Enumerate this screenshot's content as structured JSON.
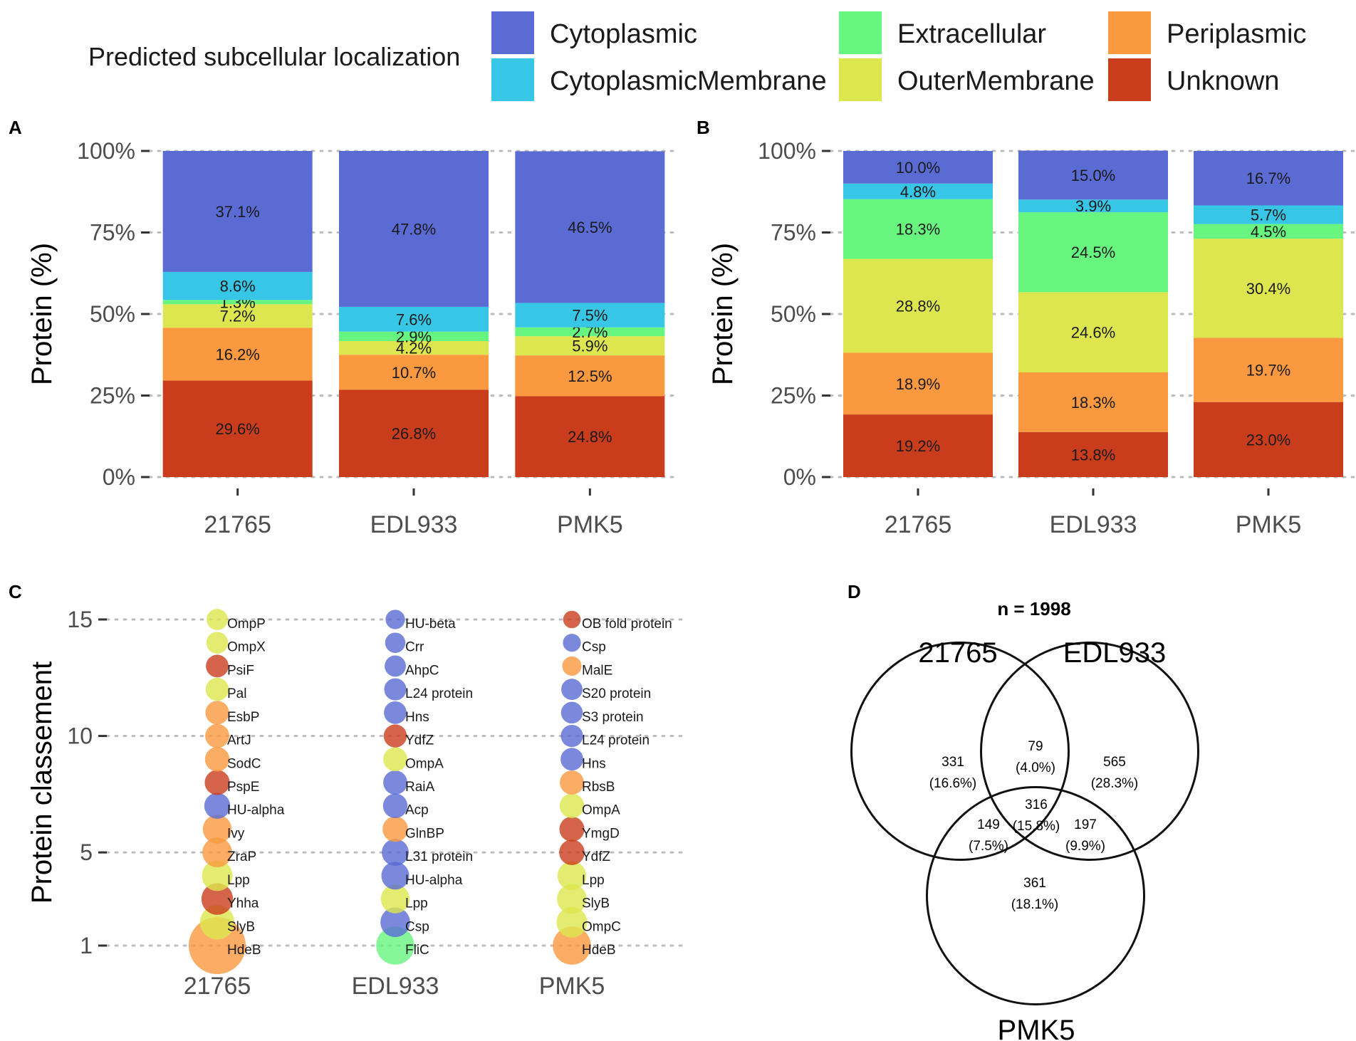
{
  "legend": {
    "title": "Predicted subcellular localization",
    "entries": [
      {
        "label": "Cytoplasmic",
        "color": "#5A6BD4"
      },
      {
        "label": "CytoplasmicMembrane",
        "color": "#38C6E6"
      },
      {
        "label": "Extracellular",
        "color": "#68F57F"
      },
      {
        "label": "OuterMembrane",
        "color": "#DDE64E"
      },
      {
        "label": "Periplasmic",
        "color": "#FA9940"
      },
      {
        "label": "Unknown",
        "color": "#C93D1D"
      }
    ]
  },
  "chart_data": [
    {
      "panel": "A",
      "type": "bar",
      "stacked": true,
      "ylabel": "Protein (%)",
      "ylim": [
        0,
        100
      ],
      "yticks": [
        "0%",
        "25%",
        "50%",
        "75%",
        "100%"
      ],
      "categories": [
        "21765",
        "EDL933",
        "PMK5"
      ],
      "series": [
        {
          "name": "Unknown",
          "values": [
            29.6,
            26.8,
            24.8
          ],
          "labels": [
            "29.6%",
            "26.8%",
            "24.8%"
          ]
        },
        {
          "name": "Periplasmic",
          "values": [
            16.2,
            10.7,
            12.5
          ],
          "labels": [
            "16.2%",
            "10.7%",
            "12.5%"
          ]
        },
        {
          "name": "OuterMembrane",
          "values": [
            7.2,
            4.2,
            5.9
          ],
          "labels": [
            "7.2%",
            "4.2%",
            "5.9%"
          ]
        },
        {
          "name": "Extracellular",
          "values": [
            1.3,
            2.9,
            2.7
          ],
          "labels": [
            "1.3%",
            "2.9%",
            "2.7%"
          ]
        },
        {
          "name": "CytoplasmicMembrane",
          "values": [
            8.6,
            7.6,
            7.5
          ],
          "labels": [
            "8.6%",
            "7.6%",
            "7.5%"
          ]
        },
        {
          "name": "Cytoplasmic",
          "values": [
            37.1,
            47.8,
            46.5
          ],
          "labels": [
            "37.1%",
            "47.8%",
            "46.5%"
          ]
        }
      ]
    },
    {
      "panel": "B",
      "type": "bar",
      "stacked": true,
      "ylabel": "Protein (%)",
      "ylim": [
        0,
        100
      ],
      "yticks": [
        "0%",
        "25%",
        "50%",
        "75%",
        "100%"
      ],
      "categories": [
        "21765",
        "EDL933",
        "PMK5"
      ],
      "series": [
        {
          "name": "Unknown",
          "values": [
            19.2,
            13.8,
            23.0
          ],
          "labels": [
            "19.2%",
            "13.8%",
            "23.0%"
          ]
        },
        {
          "name": "Periplasmic",
          "values": [
            18.9,
            18.3,
            19.7
          ],
          "labels": [
            "18.9%",
            "18.3%",
            "19.7%"
          ]
        },
        {
          "name": "OuterMembrane",
          "values": [
            28.8,
            24.6,
            30.4
          ],
          "labels": [
            "28.8%",
            "24.6%",
            "30.4%"
          ]
        },
        {
          "name": "Extracellular",
          "values": [
            18.3,
            24.5,
            4.5
          ],
          "labels": [
            "18.3%",
            "24.5%",
            "4.5%"
          ]
        },
        {
          "name": "CytoplasmicMembrane",
          "values": [
            4.8,
            3.9,
            5.7
          ],
          "labels": [
            "4.8%",
            "3.9%",
            "5.7%"
          ]
        },
        {
          "name": "Cytoplasmic",
          "values": [
            10.0,
            15.0,
            16.7
          ],
          "labels": [
            "10.0%",
            "15.0%",
            "16.7%"
          ]
        }
      ]
    },
    {
      "panel": "C",
      "type": "scatter",
      "ylabel": "Protein classement",
      "yticks": [
        1,
        5,
        10,
        15
      ],
      "ylim": [
        1,
        15
      ],
      "categories": [
        "21765",
        "EDL933",
        "PMK5"
      ],
      "points": [
        {
          "x": "21765",
          "y": 1,
          "label": "HdeB",
          "cat": "Periplasmic",
          "size": 1.0
        },
        {
          "x": "21765",
          "y": 2,
          "label": "SlyB",
          "cat": "OuterMembrane",
          "size": 0.52
        },
        {
          "x": "21765",
          "y": 3,
          "label": "Yhha",
          "cat": "Unknown",
          "size": 0.46
        },
        {
          "x": "21765",
          "y": 4,
          "label": "Lpp",
          "cat": "OuterMembrane",
          "size": 0.44
        },
        {
          "x": "21765",
          "y": 5,
          "label": "ZraP",
          "cat": "Periplasmic",
          "size": 0.42
        },
        {
          "x": "21765",
          "y": 6,
          "label": "Ivy",
          "cat": "Periplasmic",
          "size": 0.4
        },
        {
          "x": "21765",
          "y": 7,
          "label": "HU-alpha",
          "cat": "Cytoplasmic",
          "size": 0.34
        },
        {
          "x": "21765",
          "y": 8,
          "label": "PspE",
          "cat": "Unknown",
          "size": 0.32
        },
        {
          "x": "21765",
          "y": 9,
          "label": "SodC",
          "cat": "Periplasmic",
          "size": 0.31
        },
        {
          "x": "21765",
          "y": 10,
          "label": "ArtJ",
          "cat": "Periplasmic",
          "size": 0.3
        },
        {
          "x": "21765",
          "y": 11,
          "label": "EsbP",
          "cat": "Periplasmic",
          "size": 0.29
        },
        {
          "x": "21765",
          "y": 12,
          "label": "Pal",
          "cat": "OuterMembrane",
          "size": 0.28
        },
        {
          "x": "21765",
          "y": 13,
          "label": "PsiF",
          "cat": "Unknown",
          "size": 0.27
        },
        {
          "x": "21765",
          "y": 14,
          "label": "OmpX",
          "cat": "OuterMembrane",
          "size": 0.25
        },
        {
          "x": "21765",
          "y": 15,
          "label": "OmpP",
          "cat": "OuterMembrane",
          "size": 0.24
        },
        {
          "x": "EDL933",
          "y": 1,
          "label": "FliC",
          "cat": "Extracellular",
          "size": 0.6
        },
        {
          "x": "EDL933",
          "y": 2,
          "label": "Csp",
          "cat": "Cytoplasmic",
          "size": 0.42
        },
        {
          "x": "EDL933",
          "y": 3,
          "label": "Lpp",
          "cat": "OuterMembrane",
          "size": 0.4
        },
        {
          "x": "EDL933",
          "y": 4,
          "label": "HU-alpha",
          "cat": "Cytoplasmic",
          "size": 0.38
        },
        {
          "x": "EDL933",
          "y": 5,
          "label": "L31 protein",
          "cat": "Cytoplasmic",
          "size": 0.36
        },
        {
          "x": "EDL933",
          "y": 6,
          "label": "GlnBP",
          "cat": "Periplasmic",
          "size": 0.33
        },
        {
          "x": "EDL933",
          "y": 7,
          "label": "Acp",
          "cat": "Cytoplasmic",
          "size": 0.31
        },
        {
          "x": "EDL933",
          "y": 8,
          "label": "RaiA",
          "cat": "Cytoplasmic",
          "size": 0.3
        },
        {
          "x": "EDL933",
          "y": 9,
          "label": "OmpA",
          "cat": "OuterMembrane",
          "size": 0.3
        },
        {
          "x": "EDL933",
          "y": 10,
          "label": "YdfZ",
          "cat": "Unknown",
          "size": 0.28
        },
        {
          "x": "EDL933",
          "y": 11,
          "label": "Hns",
          "cat": "Cytoplasmic",
          "size": 0.27
        },
        {
          "x": "EDL933",
          "y": 12,
          "label": "L24 protein",
          "cat": "Cytoplasmic",
          "size": 0.26
        },
        {
          "x": "EDL933",
          "y": 13,
          "label": "AhpC",
          "cat": "Cytoplasmic",
          "size": 0.24
        },
        {
          "x": "EDL933",
          "y": 14,
          "label": "Crr",
          "cat": "Cytoplasmic",
          "size": 0.22
        },
        {
          "x": "EDL933",
          "y": 15,
          "label": "HU-beta",
          "cat": "Cytoplasmic",
          "size": 0.2
        },
        {
          "x": "PMK5",
          "y": 1,
          "label": "HdeB",
          "cat": "Periplasmic",
          "size": 0.6
        },
        {
          "x": "PMK5",
          "y": 2,
          "label": "OmpC",
          "cat": "OuterMembrane",
          "size": 0.44
        },
        {
          "x": "PMK5",
          "y": 3,
          "label": "SlyB",
          "cat": "OuterMembrane",
          "size": 0.42
        },
        {
          "x": "PMK5",
          "y": 4,
          "label": "Lpp",
          "cat": "OuterMembrane",
          "size": 0.4
        },
        {
          "x": "PMK5",
          "y": 5,
          "label": "YdfZ",
          "cat": "Unknown",
          "size": 0.33
        },
        {
          "x": "PMK5",
          "y": 6,
          "label": "YmgD",
          "cat": "Unknown",
          "size": 0.32
        },
        {
          "x": "PMK5",
          "y": 7,
          "label": "OmpA",
          "cat": "OuterMembrane",
          "size": 0.31
        },
        {
          "x": "PMK5",
          "y": 8,
          "label": "RbsB",
          "cat": "Periplasmic",
          "size": 0.3
        },
        {
          "x": "PMK5",
          "y": 9,
          "label": "Hns",
          "cat": "Cytoplasmic",
          "size": 0.27
        },
        {
          "x": "PMK5",
          "y": 10,
          "label": "L24 protein",
          "cat": "Cytoplasmic",
          "size": 0.26
        },
        {
          "x": "PMK5",
          "y": 11,
          "label": "S3 protein",
          "cat": "Cytoplasmic",
          "size": 0.25
        },
        {
          "x": "PMK5",
          "y": 12,
          "label": "S20 protein",
          "cat": "Cytoplasmic",
          "size": 0.24
        },
        {
          "x": "PMK5",
          "y": 13,
          "label": "MalE",
          "cat": "Periplasmic",
          "size": 0.2
        },
        {
          "x": "PMK5",
          "y": 14,
          "label": "Csp",
          "cat": "Cytoplasmic",
          "size": 0.17
        },
        {
          "x": "PMK5",
          "y": 15,
          "label": "OB fold protein",
          "cat": "Unknown",
          "size": 0.16
        }
      ]
    },
    {
      "panel": "D",
      "type": "venn",
      "title": "n = 1998",
      "sets": [
        "21765",
        "EDL933",
        "PMK5"
      ],
      "regions": [
        {
          "id": "only-21765",
          "count": "331",
          "pct": "(16.6%)"
        },
        {
          "id": "21765-edl933",
          "count": "79",
          "pct": "(4.0%)"
        },
        {
          "id": "only-edl933",
          "count": "565",
          "pct": "(28.3%)"
        },
        {
          "id": "21765-pmk5",
          "count": "149",
          "pct": "(7.5%)"
        },
        {
          "id": "all-three",
          "count": "316",
          "pct": "(15.8%)"
        },
        {
          "id": "edl933-pmk5",
          "count": "197",
          "pct": "(9.9%)"
        },
        {
          "id": "only-pmk5",
          "count": "361",
          "pct": "(18.1%)"
        }
      ]
    }
  ]
}
